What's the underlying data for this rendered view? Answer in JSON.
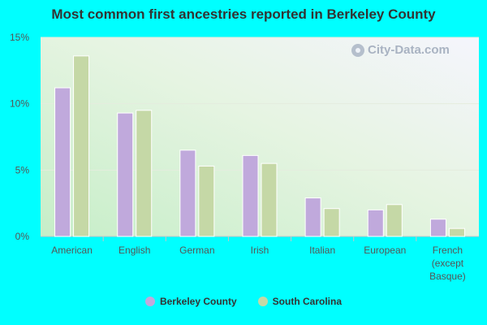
{
  "chart_data": {
    "type": "bar",
    "title": "Most common first ancestries reported in Berkeley County",
    "categories": [
      "American",
      "English",
      "German",
      "Irish",
      "Italian",
      "European",
      "French (except Basque)"
    ],
    "category_lines": [
      [
        "American"
      ],
      [
        "English"
      ],
      [
        "German"
      ],
      [
        "Irish"
      ],
      [
        "Italian"
      ],
      [
        "European"
      ],
      [
        "French",
        "(except",
        "Basque)"
      ]
    ],
    "series": [
      {
        "name": "Berkeley County",
        "color": "#c0a9dc",
        "values": [
          11.2,
          9.3,
          6.5,
          6.1,
          2.9,
          2.0,
          1.3
        ]
      },
      {
        "name": "South Carolina",
        "color": "#c5d8a6",
        "values": [
          13.6,
          9.5,
          5.3,
          5.5,
          2.1,
          2.4,
          0.6
        ]
      }
    ],
    "yticks": [
      "0%",
      "5%",
      "10%",
      "15%"
    ],
    "ytick_values": [
      0,
      5,
      10,
      15
    ],
    "ylim": [
      0,
      15
    ],
    "xlabel": "",
    "ylabel": "",
    "grid": true,
    "legend_position": "bottom"
  },
  "watermark": {
    "text": "City-Data.com",
    "icon": "magnifier-icon"
  }
}
